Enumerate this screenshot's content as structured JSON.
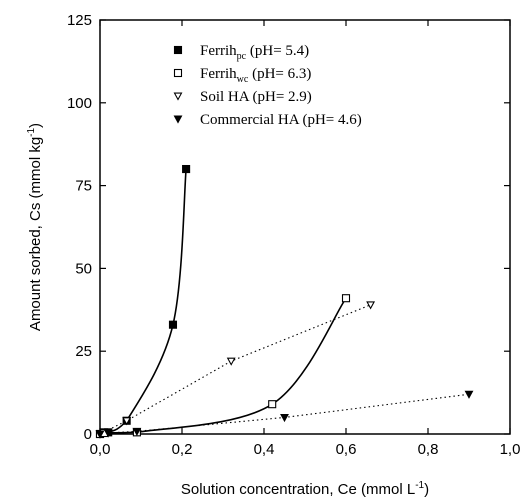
{
  "chart_data": {
    "type": "scatter",
    "xlabel": "Solution concentration, Ce (mmol L",
    "xlabel_sup": "-1",
    "xlabel_end": ")",
    "ylabel": "Amount sorbed, Cs (mmol kg",
    "ylabel_sup": "-1",
    "ylabel_end": ")",
    "xlim": [
      0,
      1.0
    ],
    "ylim": [
      0,
      125
    ],
    "x_ticks": [
      0,
      0.2,
      0.4,
      0.6,
      0.8,
      1.0
    ],
    "x_tick_labels": [
      "0,0",
      "0,2",
      "0,4",
      "0,6",
      "0,8",
      "1,0"
    ],
    "y_ticks": [
      0,
      25,
      50,
      75,
      100,
      125
    ],
    "y_tick_labels": [
      "0",
      "25",
      "50",
      "75",
      "100",
      "125"
    ],
    "grid": false,
    "legend_position": "top-right",
    "series": [
      {
        "legend_main": "Ferrih",
        "legend_sub": "pc",
        "legend_rest": " (pH= 5.4)",
        "marker": "filled-square",
        "line": "solid",
        "points": [
          [
            0.0,
            0.0
          ],
          [
            0.01,
            0.5
          ],
          [
            0.02,
            0.5
          ],
          [
            0.065,
            4
          ],
          [
            0.178,
            33
          ],
          [
            0.21,
            80
          ]
        ]
      },
      {
        "legend_main": "Ferrih",
        "legend_sub": "wc",
        "legend_rest": " (pH= 6.3)",
        "marker": "open-square",
        "line": "solid",
        "points": [
          [
            0.0,
            0.0
          ],
          [
            0.01,
            0.3
          ],
          [
            0.09,
            0.5
          ],
          [
            0.42,
            9
          ],
          [
            0.6,
            41
          ]
        ]
      },
      {
        "legend_main": "Soil HA (pH= 2.9)",
        "legend_sub": "",
        "legend_rest": "",
        "marker": "open-triangle-down",
        "line": "dotted",
        "points": [
          [
            0.0,
            0.0
          ],
          [
            0.065,
            4
          ],
          [
            0.32,
            22
          ],
          [
            0.66,
            39
          ]
        ]
      },
      {
        "legend_main": "Commercial HA (pH= 4.6)",
        "legend_sub": "",
        "legend_rest": "",
        "marker": "filled-triangle-down",
        "line": "dotted",
        "points": [
          [
            0.0,
            0.0
          ],
          [
            0.02,
            0.3
          ],
          [
            0.09,
            0.8
          ],
          [
            0.45,
            5
          ],
          [
            0.9,
            12
          ]
        ]
      }
    ]
  }
}
